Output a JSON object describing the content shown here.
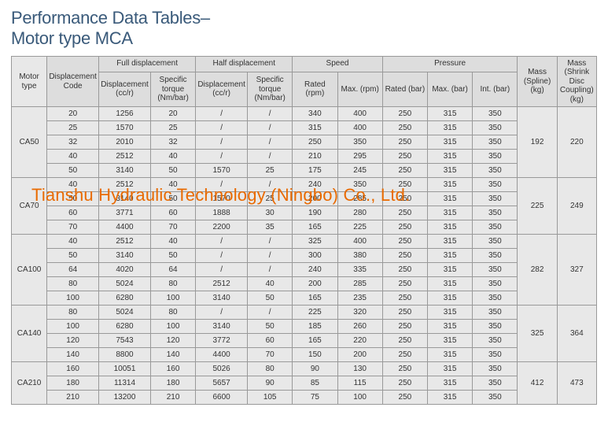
{
  "title_line1": "Performance Data Tables–",
  "title_line2": "Motor type MCA",
  "watermark": "Tianshu Hydraulic Technology (Ningbo) Co., Ltd.",
  "header": {
    "motor_type": "Motor type",
    "disp_code": "Displacement Code",
    "full_disp": "Full displacement",
    "half_disp": "Half displacement",
    "speed": "Speed",
    "pressure": "Pressure",
    "mass_spline": "Mass (Spline) (kg)",
    "mass_shrink": "Mass (Shrink Disc Coupling) (kg)",
    "displacement_ccr": "Displacement (cc/r)",
    "specific_torque": "Specific torque (Nm/bar)",
    "rated_rpm": "Rated (rpm)",
    "max_rpm": "Max. (rpm)",
    "rated_bar": "Rated (bar)",
    "max_bar": "Max. (bar)",
    "int_bar": "Int. (bar)"
  },
  "groups": [
    {
      "motor": "CA50",
      "mass_spline": "192",
      "mass_shrink": "220",
      "rows": [
        {
          "c": "20",
          "d1": "1256",
          "t1": "20",
          "d2": "/",
          "t2": "/",
          "sr": "340",
          "sm": "400",
          "pr": "250",
          "pm": "315",
          "pi": "350"
        },
        {
          "c": "25",
          "d1": "1570",
          "t1": "25",
          "d2": "/",
          "t2": "/",
          "sr": "315",
          "sm": "400",
          "pr": "250",
          "pm": "315",
          "pi": "350"
        },
        {
          "c": "32",
          "d1": "2010",
          "t1": "32",
          "d2": "/",
          "t2": "/",
          "sr": "250",
          "sm": "350",
          "pr": "250",
          "pm": "315",
          "pi": "350"
        },
        {
          "c": "40",
          "d1": "2512",
          "t1": "40",
          "d2": "/",
          "t2": "/",
          "sr": "210",
          "sm": "295",
          "pr": "250",
          "pm": "315",
          "pi": "350"
        },
        {
          "c": "50",
          "d1": "3140",
          "t1": "50",
          "d2": "1570",
          "t2": "25",
          "sr": "175",
          "sm": "245",
          "pr": "250",
          "pm": "315",
          "pi": "350"
        }
      ]
    },
    {
      "motor": "CA70",
      "mass_spline": "225",
      "mass_shrink": "249",
      "rows": [
        {
          "c": "40",
          "d1": "2512",
          "t1": "40",
          "d2": "/",
          "t2": "/",
          "sr": "240",
          "sm": "350",
          "pr": "250",
          "pm": "315",
          "pi": "350"
        },
        {
          "c": "50",
          "d1": "3140",
          "t1": "50",
          "d2": "1570",
          "t2": "25",
          "sr": "200",
          "sm": "285",
          "pr": "250",
          "pm": "315",
          "pi": "350"
        },
        {
          "c": "60",
          "d1": "3771",
          "t1": "60",
          "d2": "1888",
          "t2": "30",
          "sr": "190",
          "sm": "280",
          "pr": "250",
          "pm": "315",
          "pi": "350"
        },
        {
          "c": "70",
          "d1": "4400",
          "t1": "70",
          "d2": "2200",
          "t2": "35",
          "sr": "165",
          "sm": "225",
          "pr": "250",
          "pm": "315",
          "pi": "350"
        }
      ]
    },
    {
      "motor": "CA100",
      "mass_spline": "282",
      "mass_shrink": "327",
      "rows": [
        {
          "c": "40",
          "d1": "2512",
          "t1": "40",
          "d2": "/",
          "t2": "/",
          "sr": "325",
          "sm": "400",
          "pr": "250",
          "pm": "315",
          "pi": "350"
        },
        {
          "c": "50",
          "d1": "3140",
          "t1": "50",
          "d2": "/",
          "t2": "/",
          "sr": "300",
          "sm": "380",
          "pr": "250",
          "pm": "315",
          "pi": "350"
        },
        {
          "c": "64",
          "d1": "4020",
          "t1": "64",
          "d2": "/",
          "t2": "/",
          "sr": "240",
          "sm": "335",
          "pr": "250",
          "pm": "315",
          "pi": "350"
        },
        {
          "c": "80",
          "d1": "5024",
          "t1": "80",
          "d2": "2512",
          "t2": "40",
          "sr": "200",
          "sm": "285",
          "pr": "250",
          "pm": "315",
          "pi": "350"
        },
        {
          "c": "100",
          "d1": "6280",
          "t1": "100",
          "d2": "3140",
          "t2": "50",
          "sr": "165",
          "sm": "235",
          "pr": "250",
          "pm": "315",
          "pi": "350"
        }
      ]
    },
    {
      "motor": "CA140",
      "mass_spline": "325",
      "mass_shrink": "364",
      "rows": [
        {
          "c": "80",
          "d1": "5024",
          "t1": "80",
          "d2": "/",
          "t2": "/",
          "sr": "225",
          "sm": "320",
          "pr": "250",
          "pm": "315",
          "pi": "350"
        },
        {
          "c": "100",
          "d1": "6280",
          "t1": "100",
          "d2": "3140",
          "t2": "50",
          "sr": "185",
          "sm": "260",
          "pr": "250",
          "pm": "315",
          "pi": "350"
        },
        {
          "c": "120",
          "d1": "7543",
          "t1": "120",
          "d2": "3772",
          "t2": "60",
          "sr": "165",
          "sm": "220",
          "pr": "250",
          "pm": "315",
          "pi": "350"
        },
        {
          "c": "140",
          "d1": "8800",
          "t1": "140",
          "d2": "4400",
          "t2": "70",
          "sr": "150",
          "sm": "200",
          "pr": "250",
          "pm": "315",
          "pi": "350"
        }
      ]
    },
    {
      "motor": "CA210",
      "mass_spline": "412",
      "mass_shrink": "473",
      "rows": [
        {
          "c": "160",
          "d1": "10051",
          "t1": "160",
          "d2": "5026",
          "t2": "80",
          "sr": "90",
          "sm": "130",
          "pr": "250",
          "pm": "315",
          "pi": "350"
        },
        {
          "c": "180",
          "d1": "11314",
          "t1": "180",
          "d2": "5657",
          "t2": "90",
          "sr": "85",
          "sm": "115",
          "pr": "250",
          "pm": "315",
          "pi": "350"
        },
        {
          "c": "210",
          "d1": "13200",
          "t1": "210",
          "d2": "6600",
          "t2": "105",
          "sr": "75",
          "sm": "100",
          "pr": "250",
          "pm": "315",
          "pi": "350"
        }
      ]
    }
  ]
}
